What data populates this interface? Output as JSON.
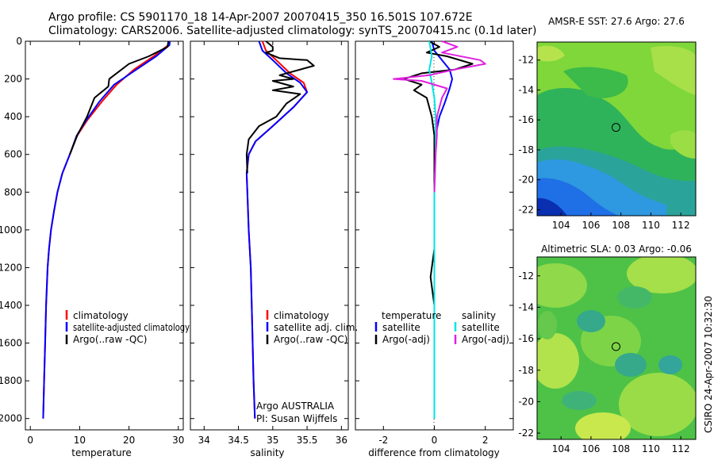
{
  "title_line1": "Argo profile: CS 5901170_18 14-Apr-2007 20070415_350 16.501S 107.672E",
  "title_line2": "Climatology: CARS2006. Satellite-adjusted climatology: synTS_20070415.nc (0.1d later)",
  "footer_right": "CSIRO 24-Apr-2007 10:32:30",
  "colors": {
    "climatology": "#ff0000",
    "satellite": "#0000ff",
    "argo": "#000000",
    "salinity_satellite": "#00e5e5",
    "salinity_argo": "#e020e0"
  },
  "chart_data": [
    {
      "type": "line",
      "id": "temperature",
      "xlabel": "temperature",
      "ylabel": "",
      "xlim": [
        -1,
        31
      ],
      "ylim": [
        2060,
        0
      ],
      "xticks": [
        0,
        10,
        20,
        30
      ],
      "yticks": [
        0,
        200,
        400,
        600,
        800,
        1000,
        1200,
        1400,
        1600,
        1800,
        2000
      ],
      "legend": [
        "climatology",
        "satellite-adjusted climatology",
        "Argo(..raw -QC)"
      ],
      "series": [
        {
          "name": "climatology",
          "color": "#ff0000",
          "x": [
            28.3,
            28.0,
            25.0,
            21.0,
            17.5,
            14.5,
            11.5,
            9.5,
            8.0,
            6.5,
            5.5,
            4.8,
            4.2,
            3.8,
            3.5,
            3.2,
            3.0,
            2.8,
            2.6
          ],
          "y": [
            0,
            20,
            80,
            150,
            230,
            320,
            420,
            500,
            600,
            700,
            800,
            900,
            1000,
            1100,
            1200,
            1400,
            1600,
            1800,
            2000
          ]
        },
        {
          "name": "satellite-adjusted climatology",
          "color": "#0000ff",
          "x": [
            28.3,
            28.2,
            25.5,
            21.5,
            17.0,
            14.0,
            11.3,
            9.4,
            8.0,
            6.5,
            5.5,
            4.8,
            4.2,
            3.8,
            3.5,
            3.2,
            3.0,
            2.8,
            2.6
          ],
          "y": [
            0,
            20,
            80,
            150,
            230,
            320,
            420,
            500,
            600,
            700,
            800,
            900,
            1000,
            1100,
            1200,
            1400,
            1600,
            1800,
            2000
          ]
        },
        {
          "name": "Argo(..raw -QC)",
          "color": "#000000",
          "x": [
            28.0,
            27.8,
            24.0,
            20.0,
            17.5,
            16.0,
            15.8,
            13.0,
            11.5,
            9.5,
            8.0
          ],
          "y": [
            0,
            30,
            80,
            120,
            170,
            200,
            240,
            300,
            400,
            500,
            600
          ]
        }
      ]
    },
    {
      "type": "line",
      "id": "salinity",
      "xlabel": "salinity",
      "xlim": [
        33.8,
        36.1
      ],
      "ylim": [
        2060,
        0
      ],
      "xticks": [
        34,
        34.5,
        35,
        35.5,
        36
      ],
      "legend": [
        "climatology",
        "satellite adj. clim.",
        "Argo(..raw -QC)"
      ],
      "annotation": [
        "Argo AUSTRALIA",
        "PI: Susan Wijffels"
      ],
      "series": [
        {
          "name": "climatology",
          "color": "#ff0000",
          "x": [
            34.85,
            34.9,
            35.05,
            35.25,
            35.45,
            35.5,
            35.3,
            35.0,
            34.75,
            34.65,
            34.62,
            34.63,
            34.65,
            34.68,
            34.7,
            34.72,
            34.74
          ],
          "y": [
            0,
            50,
            100,
            170,
            220,
            270,
            350,
            450,
            530,
            600,
            700,
            800,
            1000,
            1200,
            1500,
            1800,
            2000
          ]
        },
        {
          "name": "satellite adj. clim.",
          "color": "#0000ff",
          "x": [
            34.8,
            34.85,
            35.0,
            35.2,
            35.4,
            35.5,
            35.3,
            35.0,
            34.75,
            34.65,
            34.62,
            34.63,
            34.65,
            34.68,
            34.7,
            34.72,
            34.74
          ],
          "y": [
            0,
            50,
            100,
            170,
            220,
            270,
            350,
            450,
            530,
            600,
            700,
            800,
            1000,
            1200,
            1500,
            1800,
            2000
          ]
        },
        {
          "name": "Argo(..raw -QC)",
          "color": "#000000",
          "x": [
            34.9,
            35.0,
            35.0,
            34.9,
            35.1,
            35.5,
            35.6,
            35.1,
            35.3,
            35.0,
            35.3,
            35.0,
            35.4,
            35.2,
            35.05,
            34.8,
            34.65,
            34.62,
            34.63
          ],
          "y": [
            0,
            30,
            50,
            60,
            90,
            100,
            130,
            180,
            200,
            210,
            240,
            260,
            280,
            330,
            400,
            450,
            520,
            600,
            700
          ]
        }
      ]
    },
    {
      "type": "line",
      "id": "difference",
      "xlabel": "difference from climatology",
      "xlim": [
        -3.1,
        3.1
      ],
      "ylim": [
        2060,
        0
      ],
      "xticks": [
        -2,
        0,
        2
      ],
      "legend_headers": [
        "temperature",
        "salinity"
      ],
      "legend": [
        "satellite",
        "Argo(-adj)",
        "satellite",
        "Argo(-adj)"
      ],
      "series": [
        {
          "name": "temperature satellite",
          "color": "#0000ff",
          "x": [
            -0.1,
            0.0,
            0.3,
            0.6,
            0.7,
            0.6,
            0.4,
            0.2,
            0.05,
            0.0,
            0.0,
            0.0,
            0.0,
            0.0
          ],
          "y": [
            0,
            50,
            100,
            150,
            200,
            250,
            330,
            400,
            500,
            600,
            800,
            1200,
            1600,
            2000
          ]
        },
        {
          "name": "temperature Argo(-adj)",
          "color": "#000000",
          "x": [
            -0.2,
            0.2,
            -0.3,
            0.5,
            1.5,
            0.8,
            -0.5,
            -1.2,
            -0.5,
            -0.8,
            -0.3,
            -0.1,
            0.0,
            0.0,
            -0.15,
            0.0
          ],
          "y": [
            0,
            30,
            60,
            80,
            120,
            150,
            170,
            200,
            230,
            260,
            300,
            400,
            500,
            1100,
            1250,
            1400
          ]
        },
        {
          "name": "salinity satellite",
          "color": "#00e5e5",
          "x": [
            -0.2,
            -0.1,
            -0.2,
            -0.1,
            0.0,
            0.05,
            0.05,
            0.0,
            0.0,
            0.0,
            0.0
          ],
          "y": [
            0,
            80,
            150,
            220,
            300,
            400,
            600,
            800,
            1200,
            1600,
            2000
          ]
        },
        {
          "name": "salinity Argo(-adj)",
          "color": "#e020e0",
          "x": [
            0.3,
            0.9,
            0.3,
            1.8,
            2.0,
            0.8,
            -0.2,
            -1.6,
            -0.5,
            0.5,
            0.3,
            0.1,
            0.1,
            0.05,
            0.0
          ],
          "y": [
            0,
            30,
            60,
            100,
            120,
            150,
            180,
            200,
            210,
            250,
            300,
            400,
            500,
            600,
            800
          ]
        }
      ]
    },
    {
      "type": "heatmap",
      "id": "sst-map",
      "title": "AMSR-E SST: 27.6 Argo: 27.6",
      "xlim": [
        102.4,
        113.0
      ],
      "ylim": [
        -22.4,
        -10.8
      ],
      "xticks": [
        104,
        106,
        108,
        110,
        112
      ],
      "yticks": [
        -12,
        -14,
        -16,
        -18,
        -20,
        -22
      ],
      "marker": [
        107.672,
        -16.501
      ]
    },
    {
      "type": "heatmap",
      "id": "sla-map",
      "title": "Altimetric SLA: 0.03 Argo: -0.06",
      "xlim": [
        102.4,
        113.0
      ],
      "ylim": [
        -22.4,
        -10.8
      ],
      "xticks": [
        104,
        106,
        108,
        110,
        112
      ],
      "yticks": [
        -12,
        -14,
        -16,
        -18,
        -20,
        -22
      ],
      "marker": [
        107.672,
        -16.501
      ]
    }
  ]
}
